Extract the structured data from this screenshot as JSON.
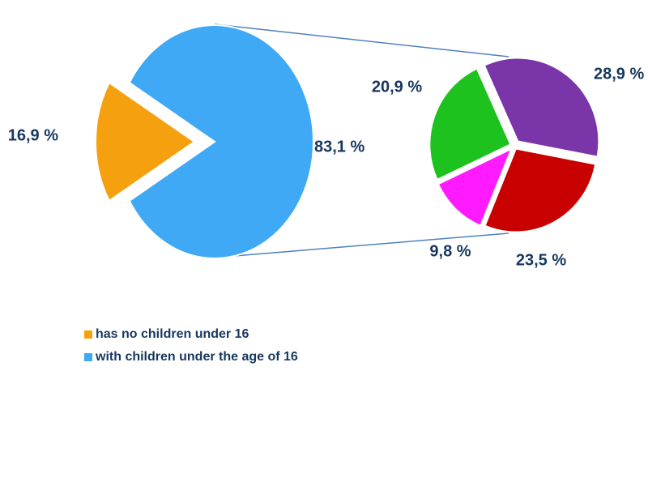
{
  "chart_data": [
    {
      "type": "pie",
      "categories": [
        "has no children under 16",
        "with children under the age of 16"
      ],
      "values": [
        16.9,
        83.1
      ],
      "value_labels": [
        "16,9 %",
        "83,1 %"
      ],
      "colors": [
        "#f5a10f",
        "#3fa9f5"
      ]
    },
    {
      "type": "pie",
      "values": [
        28.9,
        23.5,
        9.8,
        20.9
      ],
      "value_labels": [
        "28,9 %",
        "23,5 %",
        "9,8 %",
        "20,9 %"
      ],
      "colors": [
        "#7a35a8",
        "#c80000",
        "#ff1aff",
        "#1ec21e"
      ]
    }
  ]
}
